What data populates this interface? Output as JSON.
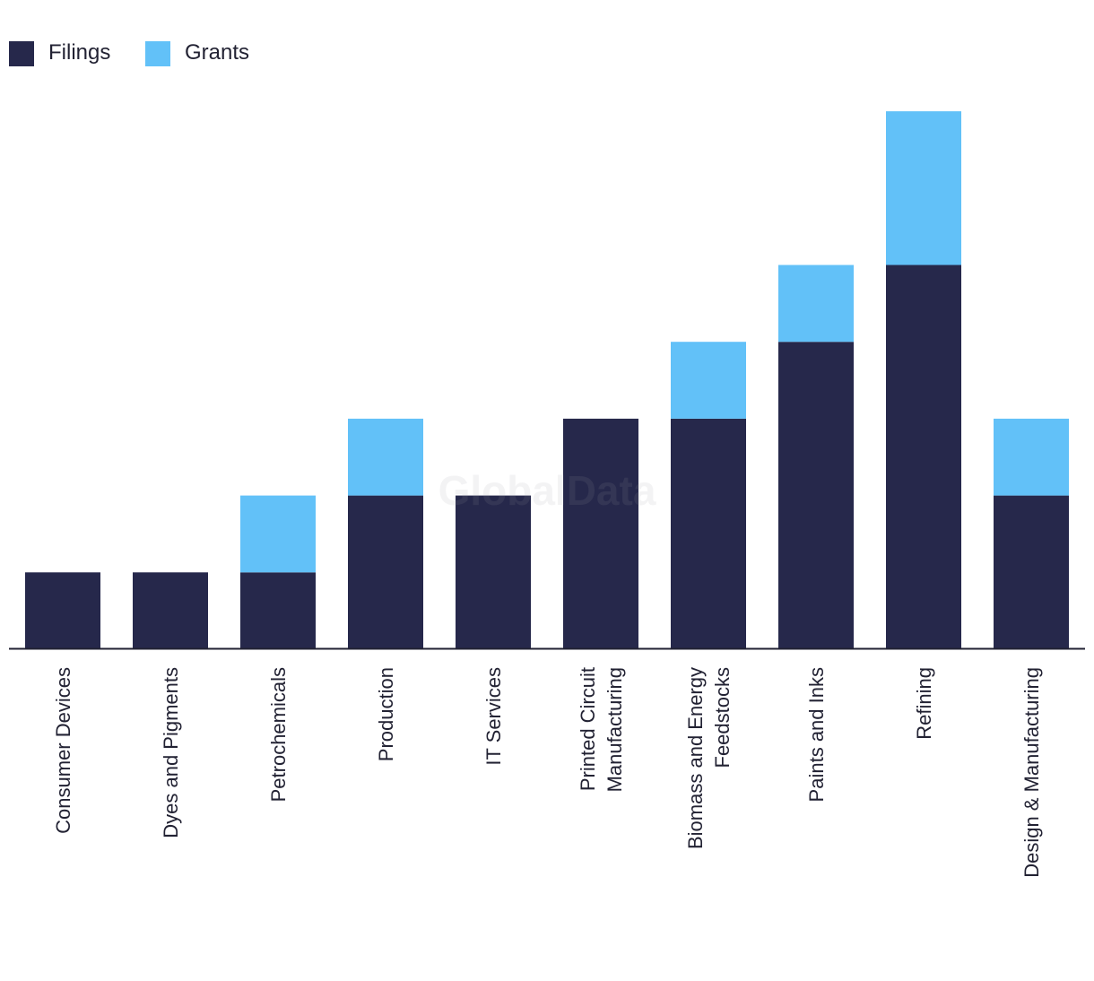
{
  "chart_data": {
    "type": "bar",
    "stacked": true,
    "title": "",
    "xlabel": "",
    "ylabel": "",
    "ylim": [
      0,
      7
    ],
    "grid": false,
    "legend_position": "top-left",
    "categories": [
      "Consumer Devices",
      "Dyes and Pigments",
      "Petrochemicals",
      "Production",
      "IT Services",
      "Printed Circuit Manufacturing",
      "Biomass and Energy Feedstocks",
      "Paints and Inks",
      "Refining",
      "Design & Manufacturing"
    ],
    "category_lines": [
      [
        "Consumer Devices"
      ],
      [
        "Dyes and Pigments"
      ],
      [
        "Petrochemicals"
      ],
      [
        "Production"
      ],
      [
        "IT Services"
      ],
      [
        "Printed Circuit",
        "Manufacturing"
      ],
      [
        "Biomass and Energy",
        "Feedstocks"
      ],
      [
        "Paints and Inks"
      ],
      [
        "Refining"
      ],
      [
        "Design & Manufacturing"
      ]
    ],
    "series": [
      {
        "name": "Filings",
        "color": "#26284b",
        "values": [
          1,
          1,
          1,
          2,
          2,
          3,
          3,
          4,
          5,
          2
        ]
      },
      {
        "name": "Grants",
        "color": "#62c1f8",
        "values": [
          0,
          0,
          1,
          1,
          0,
          0,
          1,
          1,
          2,
          1
        ]
      }
    ],
    "watermark": "GlobalData"
  }
}
